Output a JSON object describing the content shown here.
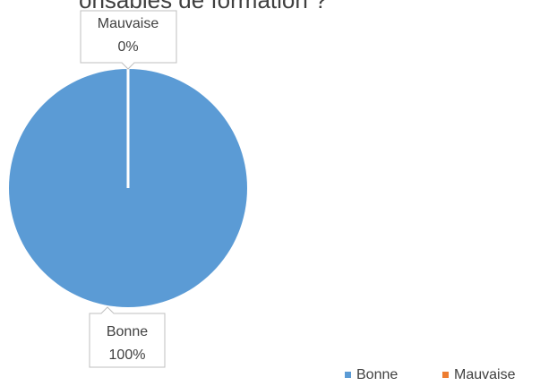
{
  "chart_data": {
    "type": "pie",
    "title": "onsables de formation ?",
    "categories": [
      "Bonne",
      "Mauvaise"
    ],
    "values": [
      100,
      0
    ],
    "value_labels": [
      "100%",
      "0%"
    ],
    "colors": [
      "#5b9bd5",
      "#ed7d31"
    ],
    "legend": "bottom-right"
  }
}
